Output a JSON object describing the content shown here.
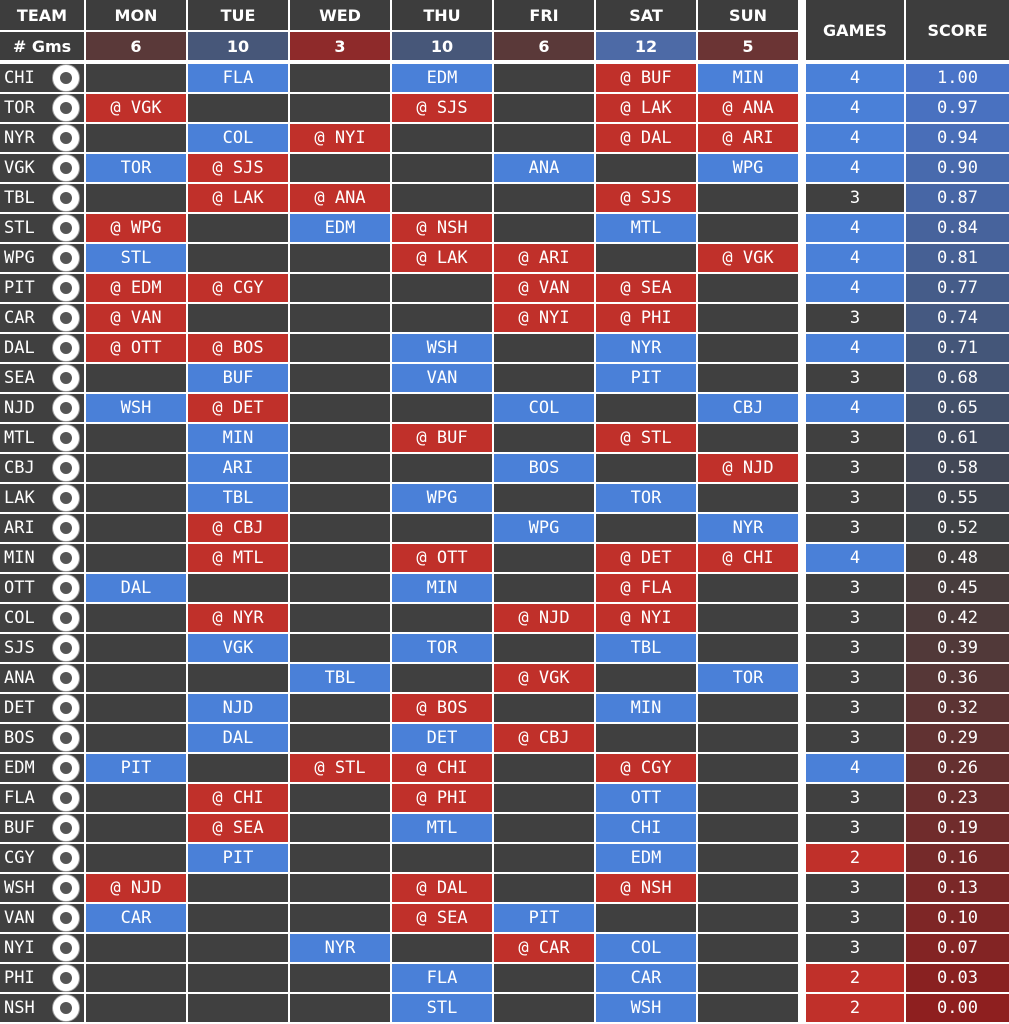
{
  "header": [
    "TEAM",
    "MON",
    "TUE",
    "WED",
    "THU",
    "FRI",
    "SAT",
    "SUN",
    "GAMES",
    "SCORE"
  ],
  "gms_label": "# Gms",
  "gms": [
    6,
    10,
    3,
    10,
    6,
    12,
    5
  ],
  "rows": [
    {
      "team": "CHI",
      "games": [
        null,
        "FLA",
        null,
        "EDM",
        null,
        "@ BUF",
        "MIN"
      ],
      "count": 4,
      "score": "1.00"
    },
    {
      "team": "TOR",
      "games": [
        "@ VGK",
        null,
        null,
        "@ SJS",
        null,
        "@ LAK",
        "@ ANA"
      ],
      "count": 4,
      "score": "0.97"
    },
    {
      "team": "NYR",
      "games": [
        null,
        "COL",
        "@ NYI",
        null,
        null,
        "@ DAL",
        "@ ARI"
      ],
      "count": 4,
      "score": "0.94"
    },
    {
      "team": "VGK",
      "games": [
        "TOR",
        "@ SJS",
        null,
        null,
        "ANA",
        null,
        "WPG"
      ],
      "count": 4,
      "score": "0.90"
    },
    {
      "team": "TBL",
      "games": [
        null,
        "@ LAK",
        "@ ANA",
        null,
        null,
        "@ SJS",
        null
      ],
      "count": 3,
      "score": "0.87"
    },
    {
      "team": "STL",
      "games": [
        "@ WPG",
        null,
        "EDM",
        "@ NSH",
        null,
        "MTL",
        null
      ],
      "count": 4,
      "score": "0.84"
    },
    {
      "team": "WPG",
      "games": [
        "STL",
        null,
        null,
        "@ LAK",
        "@ ARI",
        null,
        "@ VGK"
      ],
      "count": 4,
      "score": "0.81"
    },
    {
      "team": "PIT",
      "games": [
        "@ EDM",
        "@ CGY",
        null,
        null,
        "@ VAN",
        "@ SEA",
        null
      ],
      "count": 4,
      "score": "0.77"
    },
    {
      "team": "CAR",
      "games": [
        "@ VAN",
        null,
        null,
        null,
        "@ NYI",
        "@ PHI",
        null
      ],
      "count": 3,
      "score": "0.74"
    },
    {
      "team": "DAL",
      "games": [
        "@ OTT",
        "@ BOS",
        null,
        "WSH",
        null,
        "NYR",
        null
      ],
      "count": 4,
      "score": "0.71"
    },
    {
      "team": "SEA",
      "games": [
        null,
        "BUF",
        null,
        "VAN",
        null,
        "PIT",
        null
      ],
      "count": 3,
      "score": "0.68"
    },
    {
      "team": "NJD",
      "games": [
        "WSH",
        "@ DET",
        null,
        null,
        "COL",
        null,
        "CBJ"
      ],
      "count": 4,
      "score": "0.65"
    },
    {
      "team": "MTL",
      "games": [
        null,
        "MIN",
        null,
        "@ BUF",
        null,
        "@ STL",
        null
      ],
      "count": 3,
      "score": "0.61"
    },
    {
      "team": "CBJ",
      "games": [
        null,
        "ARI",
        null,
        null,
        "BOS",
        null,
        "@ NJD"
      ],
      "count": 3,
      "score": "0.58"
    },
    {
      "team": "LAK",
      "games": [
        null,
        "TBL",
        null,
        "WPG",
        null,
        "TOR",
        null
      ],
      "count": 3,
      "score": "0.55"
    },
    {
      "team": "ARI",
      "games": [
        null,
        "@ CBJ",
        null,
        null,
        "WPG",
        null,
        "NYR"
      ],
      "count": 3,
      "score": "0.52"
    },
    {
      "team": "MIN",
      "games": [
        null,
        "@ MTL",
        null,
        "@ OTT",
        null,
        "@ DET",
        "@ CHI"
      ],
      "count": 4,
      "score": "0.48"
    },
    {
      "team": "OTT",
      "games": [
        "DAL",
        null,
        null,
        "MIN",
        null,
        "@ FLA",
        null
      ],
      "count": 3,
      "score": "0.45"
    },
    {
      "team": "COL",
      "games": [
        null,
        "@ NYR",
        null,
        null,
        "@ NJD",
        "@ NYI",
        null
      ],
      "count": 3,
      "score": "0.42"
    },
    {
      "team": "SJS",
      "games": [
        null,
        "VGK",
        null,
        "TOR",
        null,
        "TBL",
        null
      ],
      "count": 3,
      "score": "0.39"
    },
    {
      "team": "ANA",
      "games": [
        null,
        null,
        "TBL",
        null,
        "@ VGK",
        null,
        "TOR"
      ],
      "count": 3,
      "score": "0.36"
    },
    {
      "team": "DET",
      "games": [
        null,
        "NJD",
        null,
        "@ BOS",
        null,
        "MIN",
        null
      ],
      "count": 3,
      "score": "0.32"
    },
    {
      "team": "BOS",
      "games": [
        null,
        "DAL",
        null,
        "DET",
        "@ CBJ",
        null,
        null
      ],
      "count": 3,
      "score": "0.29"
    },
    {
      "team": "EDM",
      "games": [
        "PIT",
        null,
        "@ STL",
        "@ CHI",
        null,
        "@ CGY",
        null
      ],
      "count": 4,
      "score": "0.26"
    },
    {
      "team": "FLA",
      "games": [
        null,
        "@ CHI",
        null,
        "@ PHI",
        null,
        "OTT",
        null
      ],
      "count": 3,
      "score": "0.23"
    },
    {
      "team": "BUF",
      "games": [
        null,
        "@ SEA",
        null,
        "MTL",
        null,
        "CHI",
        null
      ],
      "count": 3,
      "score": "0.19"
    },
    {
      "team": "CGY",
      "games": [
        null,
        "PIT",
        null,
        null,
        null,
        "EDM",
        null
      ],
      "count": 2,
      "score": "0.16"
    },
    {
      "team": "WSH",
      "games": [
        "@ NJD",
        null,
        null,
        "@ DAL",
        null,
        "@ NSH",
        null
      ],
      "count": 3,
      "score": "0.13"
    },
    {
      "team": "VAN",
      "games": [
        "CAR",
        null,
        null,
        "@ SEA",
        "PIT",
        null,
        null
      ],
      "count": 3,
      "score": "0.10"
    },
    {
      "team": "NYI",
      "games": [
        null,
        null,
        "NYR",
        null,
        "@ CAR",
        "COL",
        null
      ],
      "count": 3,
      "score": "0.07"
    },
    {
      "team": "PHI",
      "games": [
        null,
        null,
        null,
        "FLA",
        null,
        "CAR",
        null
      ],
      "count": 2,
      "score": "0.03"
    },
    {
      "team": "NSH",
      "games": [
        null,
        null,
        null,
        "STL",
        null,
        "WSH",
        null
      ],
      "count": 2,
      "score": "0.00"
    }
  ]
}
